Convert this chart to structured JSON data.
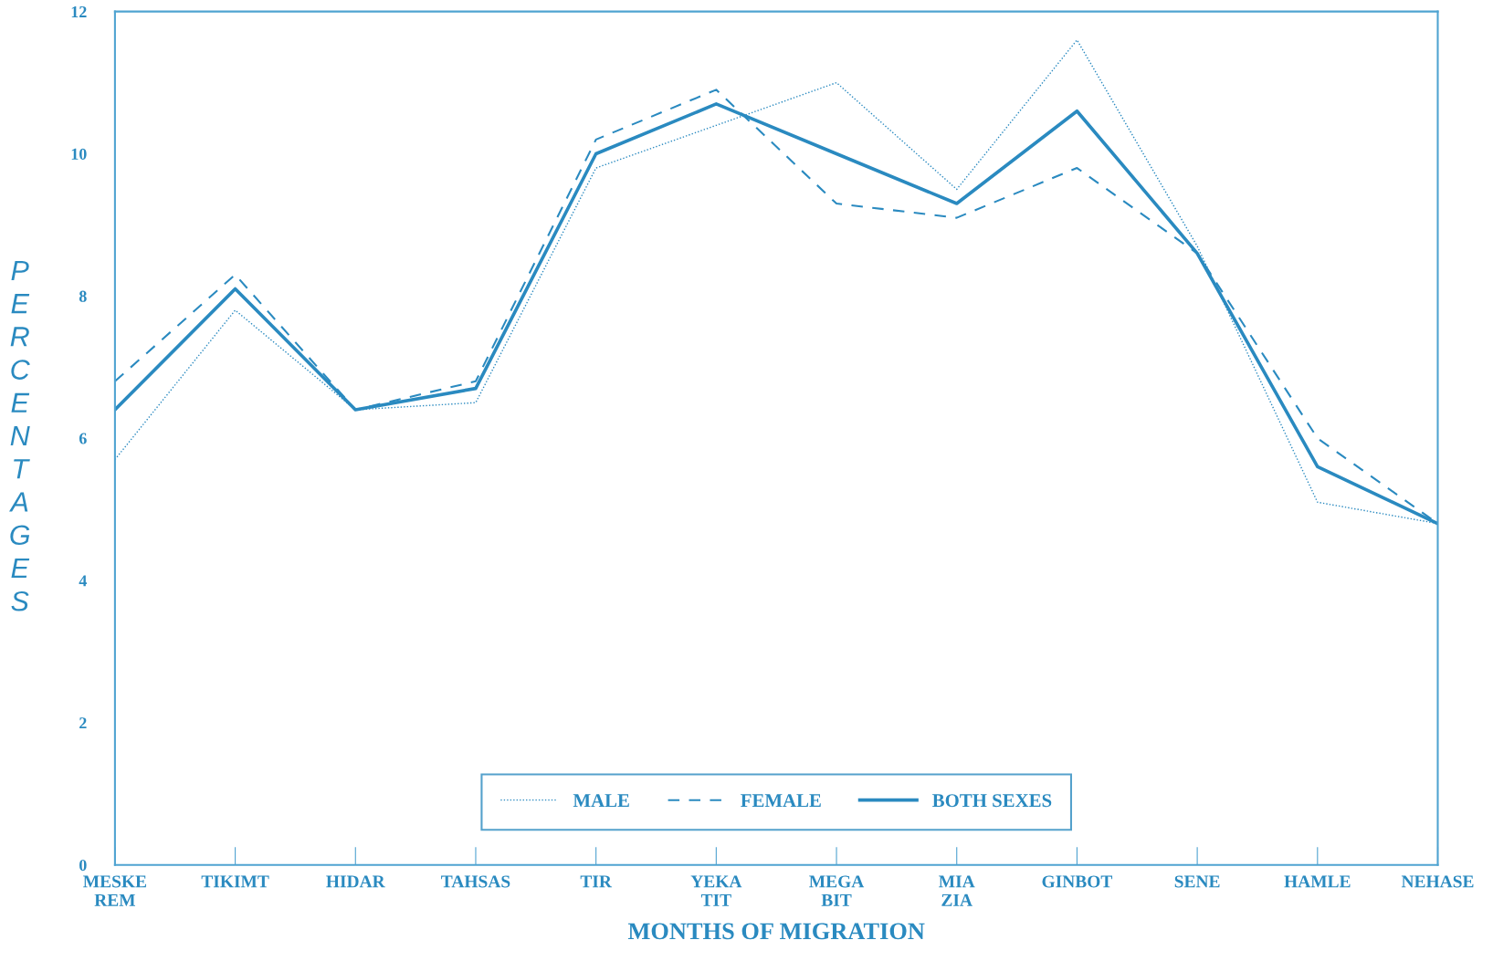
{
  "chart_data": {
    "type": "line",
    "xlabel": "MONTHS OF MIGRATION",
    "ylabel": "PERCENTAGES",
    "categories": [
      "MESKE\nREM",
      "TIKIMT",
      "HIDAR",
      "TAHSAS",
      "TIR",
      "YEKA\nTIT",
      "MEGA\nBIT",
      "MIA\nZIA",
      "GINBOT",
      "SENE",
      "HAMLE",
      "NEHASE"
    ],
    "series": [
      {
        "name": "MALE",
        "color": "#2a8ac0",
        "line_style": "dotted",
        "values": [
          5.7,
          7.8,
          6.4,
          6.5,
          9.8,
          10.4,
          11.0,
          9.5,
          11.6,
          8.7,
          5.1,
          4.8
        ]
      },
      {
        "name": "FEMALE",
        "color": "#2a8ac0",
        "line_style": "dashed",
        "values": [
          6.8,
          8.3,
          6.4,
          6.8,
          10.2,
          10.9,
          9.3,
          9.1,
          9.8,
          8.6,
          6.0,
          4.8
        ]
      },
      {
        "name": "BOTH SEXES",
        "color": "#2a8ac0",
        "line_style": "solid",
        "values": [
          6.4,
          8.1,
          6.4,
          6.7,
          10.0,
          10.7,
          10.0,
          9.3,
          10.6,
          8.6,
          5.6,
          4.8
        ]
      }
    ],
    "ylim": [
      0,
      12
    ],
    "yticks": [
      0,
      2,
      4,
      6,
      8,
      10,
      12
    ],
    "grid": false,
    "legend": "bottom",
    "marker": "none"
  }
}
